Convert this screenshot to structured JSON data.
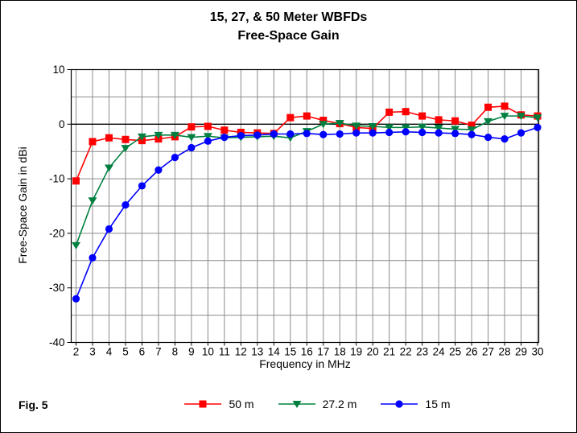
{
  "title": {
    "line1": "15, 27, & 50 Meter WBFDs",
    "line2": "Free-Space Gain"
  },
  "fig_label": "Fig. 5",
  "chart_data": {
    "type": "line",
    "title": "15, 27, & 50 Meter WBFDs",
    "subtitle": "Free-Space Gain",
    "xlabel": "Frequency in MHz",
    "ylabel": "Free-Space Gain in dBi",
    "x": [
      2,
      3,
      4,
      5,
      6,
      7,
      8,
      9,
      10,
      11,
      12,
      13,
      14,
      15,
      16,
      17,
      18,
      19,
      20,
      21,
      22,
      23,
      24,
      25,
      26,
      27,
      28,
      29,
      30
    ],
    "ylim": [
      -40,
      10
    ],
    "y_major_ticks": [
      10,
      0,
      -10,
      -20,
      -30,
      -40
    ],
    "y_grid_step": 5,
    "grid": true,
    "grid_color": "#8c8c8c",
    "zero_line_color": "#000000",
    "axis_color": "#000000",
    "legend_position": "bottom",
    "series": [
      {
        "name": "50 m",
        "color": "#ff0000",
        "marker": "square",
        "values": [
          -10.4,
          -3.2,
          -2.5,
          -2.8,
          -3.0,
          -2.7,
          -2.3,
          -0.5,
          -0.4,
          -1.1,
          -1.5,
          -1.6,
          -1.7,
          1.2,
          1.5,
          0.7,
          0.1,
          -0.6,
          -0.8,
          2.2,
          2.3,
          1.5,
          0.8,
          0.6,
          -0.2,
          3.1,
          3.3,
          1.7,
          1.5
        ]
      },
      {
        "name": "27.2 m",
        "color": "#008040",
        "marker": "triangle-down",
        "values": [
          -22.2,
          -14.0,
          -8.0,
          -4.4,
          -2.3,
          -2.0,
          -2.0,
          -2.4,
          -2.2,
          -2.5,
          -2.4,
          -2.3,
          -2.2,
          -2.5,
          -1.3,
          0.0,
          0.2,
          -0.3,
          -0.4,
          -0.6,
          -0.6,
          -0.5,
          -0.7,
          -0.9,
          -1.0,
          0.5,
          1.5,
          1.5,
          1.2
        ]
      },
      {
        "name": "15 m",
        "color": "#0000ff",
        "marker": "circle",
        "values": [
          -32.0,
          -24.5,
          -19.2,
          -14.8,
          -11.3,
          -8.4,
          -6.1,
          -4.3,
          -3.1,
          -2.4,
          -2.1,
          -2.0,
          -1.8,
          -1.8,
          -1.7,
          -1.9,
          -1.8,
          -1.6,
          -1.6,
          -1.5,
          -1.4,
          -1.5,
          -1.6,
          -1.7,
          -1.9,
          -2.4,
          -2.7,
          -1.6,
          -0.6
        ]
      }
    ]
  }
}
